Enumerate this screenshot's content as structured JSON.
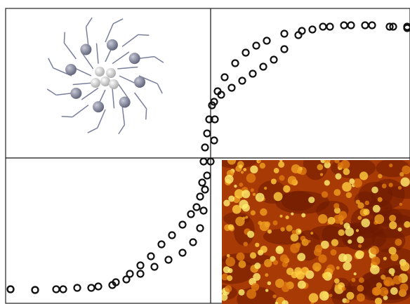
{
  "chart_data": {
    "type": "scatter",
    "xlim": [
      -292,
      284
    ],
    "ylim": [
      -207,
      213
    ],
    "series": [
      {
        "color": "#111111",
        "x": [
          280,
          255,
          220,
          190,
          160,
          130,
          105,
          80,
          65,
          50,
          35,
          20,
          10,
          2,
          -2,
          -5,
          -8,
          -10,
          -12,
          -15,
          -20,
          -28,
          -40,
          -55,
          -70,
          -85,
          -100,
          -115,
          -135,
          -160,
          -190,
          -220,
          -250,
          -285
        ],
        "values": [
          187,
          187,
          189,
          189,
          187,
          181,
          177,
          167,
          160,
          150,
          135,
          115,
          95,
          75,
          55,
          35,
          15,
          -5,
          -35,
          -55,
          -70,
          -80,
          -95,
          -110,
          -123,
          -140,
          -153,
          -165,
          -177,
          -183,
          -185,
          -187,
          -188,
          -187
        ]
      },
      {
        "color": "#111111",
        "x": [
          -285,
          -250,
          -210,
          -170,
          -140,
          -120,
          -100,
          -80,
          -60,
          -40,
          -25,
          -15,
          -10,
          -8,
          -5,
          0,
          5,
          6,
          5,
          15,
          30,
          45,
          60,
          75,
          90,
          105,
          125,
          145,
          170,
          200,
          230,
          260,
          280
        ],
        "values": [
          -187,
          -188,
          -187,
          -185,
          -181,
          -173,
          -165,
          -155,
          -145,
          -135,
          -120,
          -100,
          -75,
          -45,
          -25,
          -5,
          25,
          55,
          80,
          90,
          100,
          110,
          120,
          130,
          140,
          155,
          175,
          183,
          187,
          189,
          189,
          187,
          185
        ]
      }
    ]
  }
}
